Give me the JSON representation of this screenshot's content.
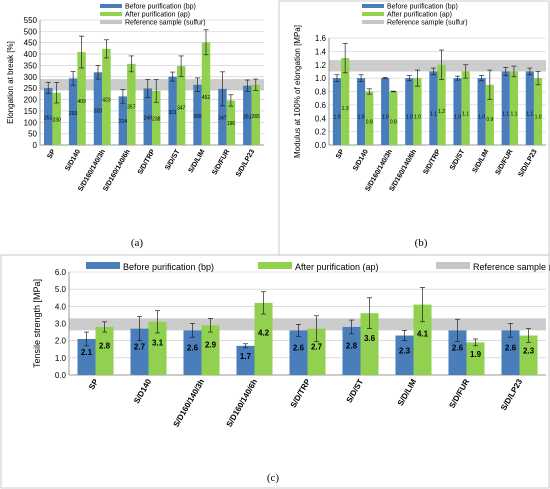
{
  "chart_data": [
    {
      "type": "bar",
      "panel_label": "(a)",
      "ylabel": "Elongation at break [%]",
      "ylim": [
        0,
        550
      ],
      "yticks": [
        0,
        50,
        100,
        150,
        200,
        250,
        300,
        350,
        400,
        450,
        500,
        550
      ],
      "categories": [
        "SP",
        "S/D140",
        "S/D160/140/3h",
        "S/D160/140/6h",
        "S/D/TRP",
        "S/D/ST",
        "S/D/LIM",
        "S/D/FUR",
        "S/D/LP23"
      ],
      "series": [
        {
          "name": "Before purification (bp)",
          "color": "#4a7ebb",
          "values": [
            251,
            293,
            320,
            214,
            249,
            301,
            265,
            247,
            261
          ],
          "errors": [
            25,
            30,
            30,
            30,
            40,
            20,
            30,
            75,
            25
          ],
          "labels": [
            "251",
            "293",
            "320",
            "214",
            "249",
            "301",
            "265",
            "247",
            "261"
          ]
        },
        {
          "name": "After purification (ap)",
          "color": "#92d050",
          "values": [
            230,
            409,
            423,
            357,
            238,
            347,
            452,
            196,
            265
          ],
          "errors": [
            45,
            70,
            40,
            35,
            50,
            45,
            55,
            25,
            25
          ],
          "labels": [
            "230",
            "409",
            "423",
            "357",
            "238",
            "347",
            "452",
            "196",
            "265"
          ]
        }
      ],
      "reference": {
        "name": "Reference sample (sulfur)",
        "low": 240,
        "high": 290
      },
      "legend": "top-right"
    },
    {
      "type": "bar",
      "panel_label": "(b)",
      "ylabel": "Modulus at 100% of elongation [MPa]",
      "ylim": [
        0,
        1.6
      ],
      "yticks": [
        0.0,
        0.2,
        0.4,
        0.6,
        0.8,
        1.0,
        1.2,
        1.4,
        1.6
      ],
      "categories": [
        "SP",
        "S/D140",
        "S/D160/140/3h",
        "S/D160/140/6h",
        "S/D/TRP",
        "S/D/ST",
        "S/D/LIM",
        "S/D/FUR",
        "S/D/LP23"
      ],
      "series": [
        {
          "name": "Before purification (bp)",
          "color": "#4a7ebb",
          "values": [
            1.0,
            1.0,
            1.0,
            1.0,
            1.1,
            1.0,
            1.0,
            1.1,
            1.1
          ],
          "errors": [
            0.05,
            0.05,
            0.01,
            0.04,
            0.05,
            0.03,
            0.04,
            0.06,
            0.05
          ],
          "labels": [
            "1.0",
            "1.0",
            "1.0",
            "1.0",
            "1.1",
            "1.0",
            "1.0",
            "1.1",
            "1.1"
          ]
        },
        {
          "name": "After purification (ap)",
          "color": "#92d050",
          "values": [
            1.3,
            0.8,
            0.8,
            1.0,
            1.2,
            1.1,
            0.9,
            1.1,
            1.0
          ],
          "errors": [
            0.22,
            0.04,
            0.005,
            0.12,
            0.22,
            0.1,
            0.22,
            0.08,
            0.1
          ],
          "labels": [
            "1.3",
            "0.8",
            "0.8",
            "1.0",
            "1.2",
            "1.1",
            "0.9",
            "1.1",
            "1.0"
          ]
        }
      ],
      "reference": {
        "name": "Reference sample (sulfur)",
        "low": 1.1,
        "high": 1.27
      },
      "legend": "top-right"
    },
    {
      "type": "bar",
      "panel_label": "(c)",
      "ylabel": "Tensile strength [MPa]",
      "ylim": [
        0,
        6
      ],
      "yticks": [
        "0.0",
        "1.0",
        "2.0",
        "3.0",
        "4.0",
        "5.0",
        "6.0"
      ],
      "categories": [
        "SP",
        "S/D140",
        "S/D160/140/3h",
        "S/D160/140/6h",
        "S/D/TRP",
        "S/D/ST",
        "S/D/LIM",
        "S/D/FUR",
        "S/D/LP23"
      ],
      "series": [
        {
          "name": "Before purification (bp)",
          "color": "#4a7ebb",
          "values": [
            2.1,
            2.7,
            2.6,
            1.7,
            2.6,
            2.8,
            2.3,
            2.6,
            2.6
          ],
          "errors": [
            0.4,
            0.7,
            0.4,
            0.12,
            0.35,
            0.4,
            0.3,
            0.65,
            0.4
          ],
          "labels": [
            "2.1",
            "2.7",
            "2.6",
            "1.7",
            "2.6",
            "2.8",
            "2.3",
            "2.6",
            "2.6"
          ]
        },
        {
          "name": "After purification (ap)",
          "color": "#92d050",
          "values": [
            2.8,
            3.1,
            2.9,
            4.2,
            2.7,
            3.6,
            4.1,
            1.9,
            2.3
          ],
          "errors": [
            0.3,
            0.65,
            0.4,
            0.65,
            0.75,
            0.9,
            1.0,
            0.2,
            0.4
          ],
          "labels": [
            "2.8",
            "3.1",
            "2.9",
            "4.2",
            "2.7",
            "3.6",
            "4.1",
            "1.9",
            "2.3"
          ]
        }
      ],
      "reference": {
        "name": "Reference sample (sulfur)",
        "low": 2.6,
        "high": 3.3
      },
      "legend": "top"
    }
  ]
}
